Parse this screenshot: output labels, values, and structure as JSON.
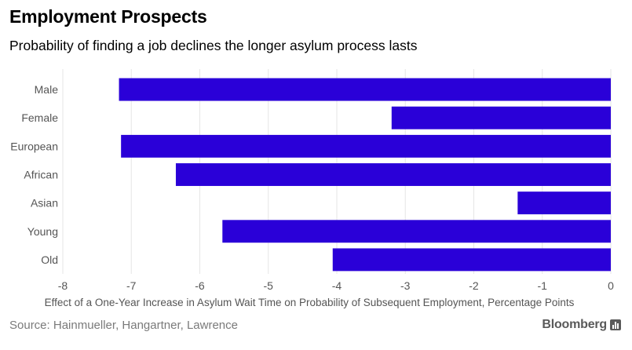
{
  "header": {
    "title": "Employment Prospects",
    "subtitle": "Probability of finding a job declines the longer asylum process lasts"
  },
  "footer": {
    "source": "Source: Hainmueller, Hangartner, Lawrence",
    "brand": "Bloomberg",
    "brand_icon": "bar-chart-icon"
  },
  "colors": {
    "bar": "#2a00d8",
    "grid": "#e6e6e6",
    "axis_text": "#555555"
  },
  "chart_data": {
    "type": "bar",
    "orientation": "horizontal",
    "categories": [
      "Male",
      "Female",
      "European",
      "African",
      "Asian",
      "Young",
      "Old"
    ],
    "values": [
      -7.18,
      -3.2,
      -7.15,
      -6.35,
      -1.36,
      -5.67,
      -4.06
    ],
    "xlabel": "Effect of a One-Year Increase in Asylum Wait Time on Probability of Subsequent Employment, Percentage Points",
    "ylabel": "",
    "xlim": [
      -8,
      0
    ],
    "xticks": [
      "-8",
      "-7",
      "-6",
      "-5",
      "-4",
      "-3",
      "-2",
      "-1",
      "0"
    ],
    "grid": true,
    "legend": "none"
  }
}
